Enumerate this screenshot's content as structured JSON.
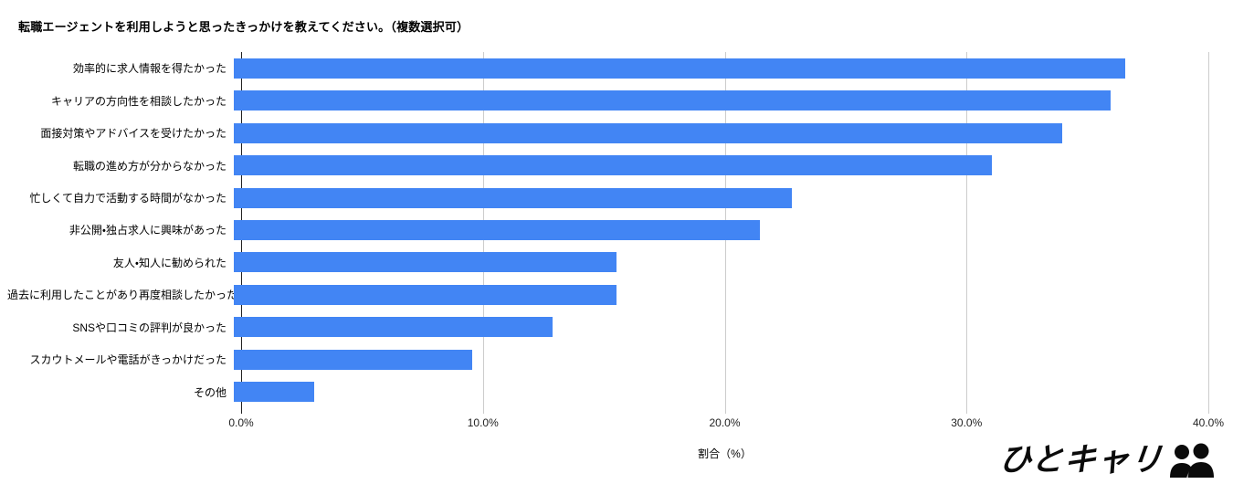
{
  "title": "転職エージェントを利用しようと思ったきっかけを教えてください。（複数選択可）",
  "chart_data": {
    "type": "bar",
    "orientation": "horizontal",
    "categories": [
      "効率的に求人情報を得たかった",
      "キャリアの方向性を相談したかった",
      "面接対策やアドバイスを受けたかった",
      "転職の進め方が分からなかった",
      "忙しくて自力で活動する時間がなかった",
      "非公開・独占求人に興味があった",
      "友人・知人に勧められた",
      "過去に利用したことがあり再度相談したかった",
      "SNSや口コミの評判が良かった",
      "スカウトメールや電話がきっかけだった",
      "その他"
    ],
    "values": [
      36.6,
      36.0,
      34.0,
      31.1,
      22.9,
      21.6,
      15.7,
      15.7,
      13.1,
      9.8,
      3.3
    ],
    "xlabel": "割合（%）",
    "xlim": [
      0,
      40
    ],
    "x_ticks": [
      "0.0%",
      "10.0%",
      "20.0%",
      "30.0%",
      "40.0%"
    ],
    "grid": true,
    "legend": "none",
    "bar_color": "#4285F4"
  },
  "colors": {
    "bar": "#4285F4",
    "gridline": "#cccccc",
    "axis_line": "#212121",
    "text": "#000000"
  },
  "logo": {
    "text": "ひとキャリ",
    "icon": "two-people-icon"
  }
}
